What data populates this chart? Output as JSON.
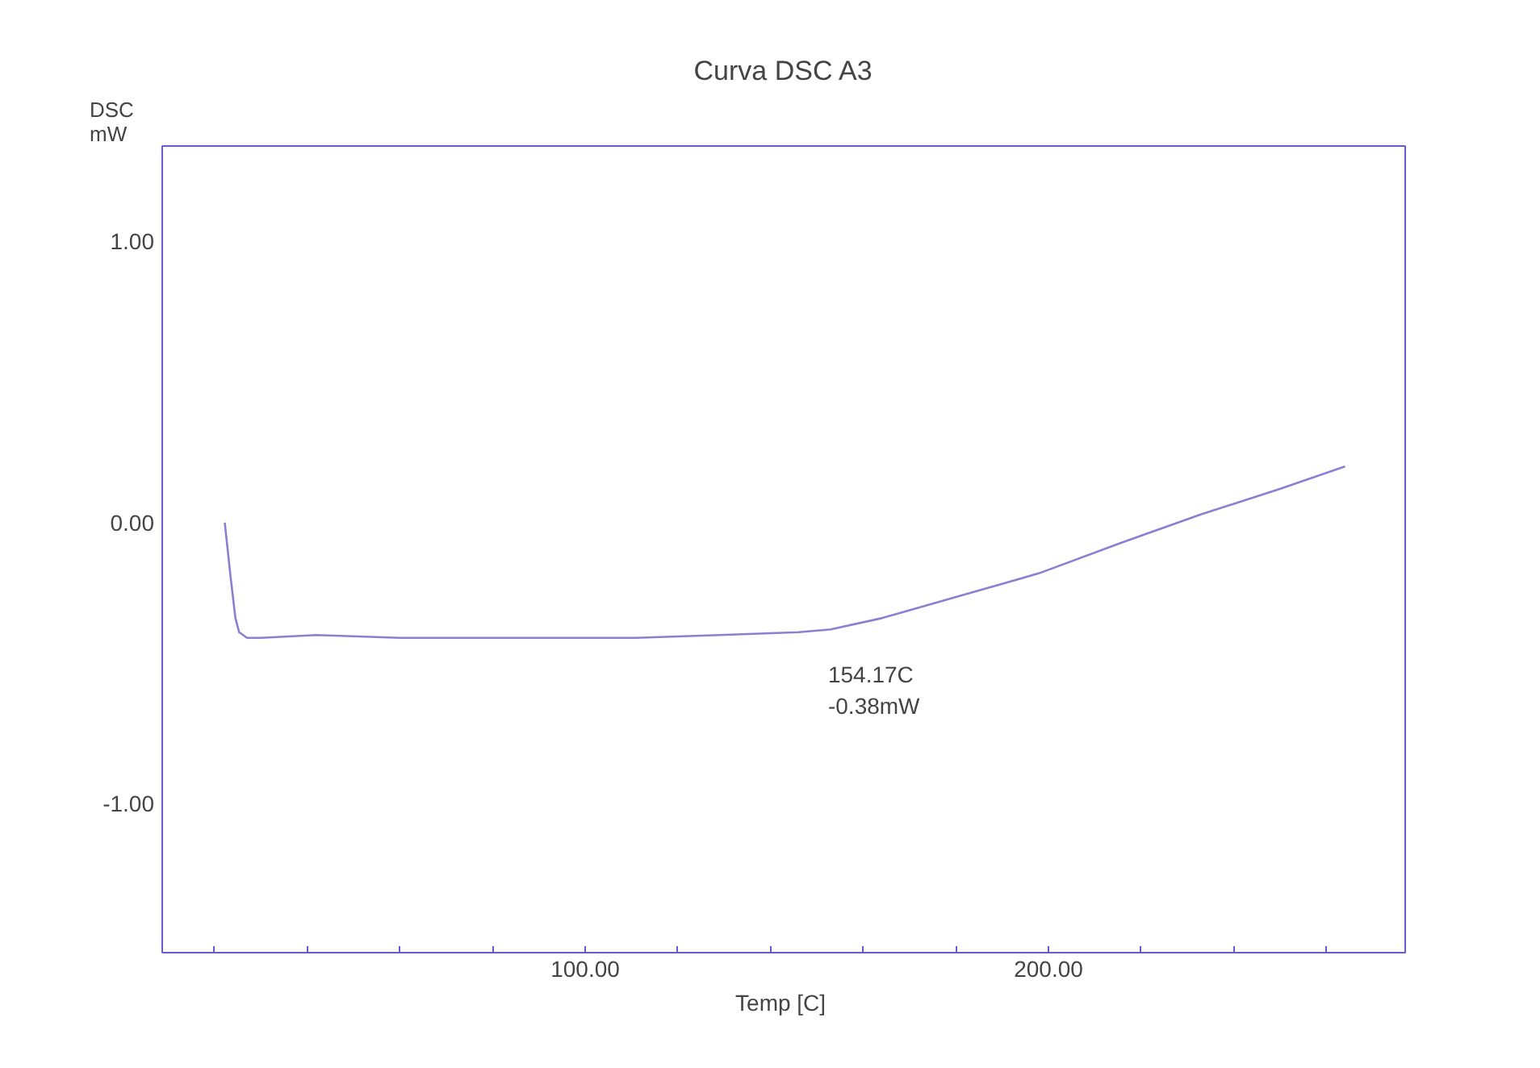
{
  "chart_data": {
    "type": "line",
    "title": "Curva DSC A3",
    "xlabel": "Temp  [C]",
    "ylabel": "DSC\nmW",
    "xlim": [
      8.7,
      277
    ],
    "ylim": [
      -1.53,
      1.34
    ],
    "xticks": [
      {
        "value": 20,
        "label": null
      },
      {
        "value": 40,
        "label": null
      },
      {
        "value": 60,
        "label": null
      },
      {
        "value": 80,
        "label": null
      },
      {
        "value": 100,
        "label": "100.00"
      },
      {
        "value": 120,
        "label": null
      },
      {
        "value": 140,
        "label": null
      },
      {
        "value": 160,
        "label": null
      },
      {
        "value": 180,
        "label": null
      },
      {
        "value": 200,
        "label": "200.00"
      },
      {
        "value": 220,
        "label": null
      },
      {
        "value": 240,
        "label": null
      },
      {
        "value": 260,
        "label": null
      }
    ],
    "yticks": [
      {
        "value": -1,
        "label": "-1.00"
      },
      {
        "value": 0,
        "label": "0.00"
      },
      {
        "value": 1,
        "label": "1.00"
      }
    ],
    "grid": false,
    "marker": "none",
    "line_style": "solid",
    "annotations": [
      {
        "text": "154.17C\n-0.38mW",
        "x": 154.17,
        "y": -0.38
      }
    ],
    "series": [
      {
        "color": "#8a7fd0",
        "x": [
          22.2,
          23.5,
          24.5,
          25.3,
          27,
          30,
          42,
          60,
          80,
          94,
          111,
          129,
          146,
          153,
          164,
          181,
          198,
          216,
          233,
          250,
          264
        ],
        "values": [
          0.0,
          -0.2,
          -0.34,
          -0.39,
          -0.41,
          -0.41,
          -0.4,
          -0.41,
          -0.41,
          -0.41,
          -0.41,
          -0.4,
          -0.39,
          -0.38,
          -0.34,
          -0.26,
          -0.18,
          -0.07,
          0.03,
          0.12,
          0.2
        ]
      }
    ]
  }
}
